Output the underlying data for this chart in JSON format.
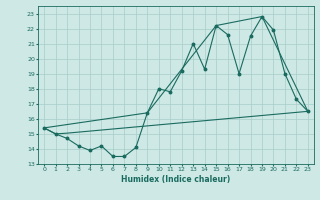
{
  "xlabel": "Humidex (Indice chaleur)",
  "background_color": "#cde8e5",
  "grid_color": "#a8cdc9",
  "line_color": "#1a6b5f",
  "xlim": [
    -0.5,
    23.5
  ],
  "ylim": [
    13,
    23.5
  ],
  "xticks": [
    0,
    1,
    2,
    3,
    4,
    5,
    6,
    7,
    8,
    9,
    10,
    11,
    12,
    13,
    14,
    15,
    16,
    17,
    18,
    19,
    20,
    21,
    22,
    23
  ],
  "yticks": [
    13,
    14,
    15,
    16,
    17,
    18,
    19,
    20,
    21,
    22,
    23
  ],
  "line1_x": [
    0,
    1,
    2,
    3,
    4,
    5,
    6,
    7,
    8,
    9,
    10,
    11,
    12,
    13,
    14,
    15,
    16,
    17,
    18,
    19,
    20,
    21,
    22,
    23
  ],
  "line1_y": [
    15.4,
    15.0,
    14.7,
    14.2,
    13.9,
    14.2,
    13.5,
    13.5,
    14.1,
    16.4,
    18.0,
    17.8,
    19.2,
    21.0,
    19.3,
    22.2,
    21.6,
    19.0,
    21.5,
    22.8,
    21.9,
    19.0,
    17.3,
    16.5
  ],
  "line2_x": [
    0,
    1,
    2,
    23
  ],
  "line2_y": [
    15.4,
    15.0,
    15.05,
    16.5
  ],
  "line3_x": [
    0,
    9,
    15,
    19,
    23
  ],
  "line3_y": [
    15.4,
    16.4,
    22.2,
    22.8,
    16.5
  ]
}
